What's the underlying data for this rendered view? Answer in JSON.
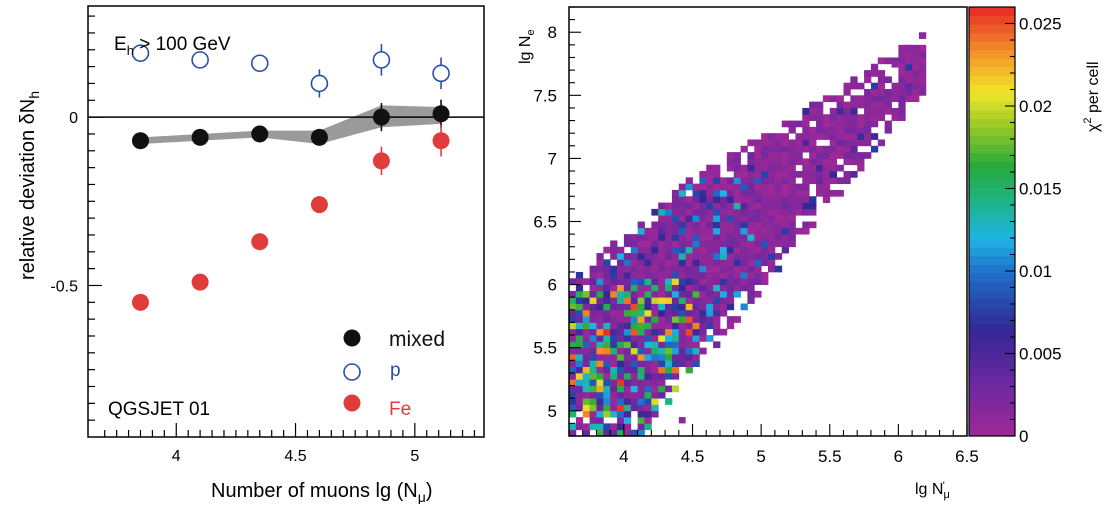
{
  "colors": {
    "mixed": "#111111",
    "proton": "#2a4fa8",
    "iron": "#e03c3c",
    "band": "#9a9a9a",
    "axis": "#000000"
  },
  "chart_data": [
    {
      "type": "scatter",
      "panel": "left",
      "xlabel": "Number of muons lg (N",
      "xlabel_sub": "μ",
      "xlabel_end": ")",
      "ylabel": "relative deviation δN",
      "ylabel_sub": "h",
      "annotation_energy": "E",
      "annotation_energy_sub": "h",
      "annotation_energy_rest": " > 100 GeV",
      "annotation_model": "QGSJET 01",
      "xlim": [
        3.63,
        5.29
      ],
      "ylim": [
        -0.95,
        0.33
      ],
      "x_ticks": [
        {
          "value": 4,
          "label": "4"
        },
        {
          "value": 4.5,
          "label": "4.5"
        },
        {
          "value": 5,
          "label": "5"
        }
      ],
      "y_ticks": [
        {
          "value": 0,
          "label": "0"
        },
        {
          "value": -0.5,
          "label": "-0.5"
        }
      ],
      "zero_line": true,
      "series": [
        {
          "name": "mixed",
          "marker": "filled-circle",
          "color": "#111111",
          "x": [
            3.85,
            4.1,
            4.35,
            4.6,
            4.86,
            5.11
          ],
          "y": [
            -0.07,
            -0.06,
            -0.05,
            -0.06,
            0.0,
            0.01
          ],
          "err": [
            0.012,
            0.012,
            0.012,
            0.012,
            0.03,
            0.03
          ]
        },
        {
          "name": "p",
          "marker": "open-circle",
          "color": "#2a4fa8",
          "x": [
            3.85,
            4.1,
            4.35,
            4.6,
            4.86,
            5.11
          ],
          "y": [
            0.19,
            0.17,
            0.16,
            0.1,
            0.17,
            0.13
          ],
          "err": [
            0.012,
            0.012,
            0.012,
            0.03,
            0.035,
            0.035
          ]
        },
        {
          "name": "Fe",
          "marker": "filled-circle",
          "color": "#e03c3c",
          "x": [
            3.85,
            4.1,
            4.35,
            4.6,
            4.86,
            5.11
          ],
          "y": [
            -0.55,
            -0.49,
            -0.37,
            -0.26,
            -0.13,
            -0.07
          ],
          "err": [
            0.012,
            0.012,
            0.012,
            0.012,
            0.03,
            0.035
          ]
        }
      ],
      "band": {
        "x": [
          3.85,
          4.1,
          4.35,
          4.6,
          4.86,
          5.11
        ],
        "upper": [
          -0.06,
          -0.05,
          -0.04,
          -0.04,
          0.035,
          0.03
        ],
        "lower": [
          -0.08,
          -0.07,
          -0.06,
          -0.08,
          -0.03,
          -0.02
        ]
      },
      "legend": {
        "placement": "bottom-right",
        "entries": [
          {
            "label": "mixed",
            "series": "mixed"
          },
          {
            "label": "p",
            "series": "p"
          },
          {
            "label": "Fe",
            "series": "Fe"
          }
        ]
      }
    },
    {
      "type": "heatmap",
      "panel": "right",
      "xlabel": "lg N",
      "xlabel_sub": "μ",
      "xlabel_sup": "'",
      "ylabel": "lg N",
      "ylabel_sub": "e",
      "colorbar_label": "χ",
      "colorbar_label_sup": "2",
      "colorbar_label_rest": " per cell",
      "xlim": [
        3.6,
        6.5
      ],
      "ylim": [
        4.8,
        8.2
      ],
      "x_ticks": [
        {
          "value": 4,
          "label": "4"
        },
        {
          "value": 4.5,
          "label": "4.5"
        },
        {
          "value": 5,
          "label": "5"
        },
        {
          "value": 5.5,
          "label": "5.5"
        },
        {
          "value": 6,
          "label": "6"
        },
        {
          "value": 6.5,
          "label": "6.5"
        }
      ],
      "y_ticks": [
        {
          "value": 5,
          "label": "5"
        },
        {
          "value": 5.5,
          "label": "5.5"
        },
        {
          "value": 6,
          "label": "6"
        },
        {
          "value": 6.5,
          "label": "6.5"
        },
        {
          "value": 7,
          "label": "7"
        },
        {
          "value": 7.5,
          "label": "7.5"
        },
        {
          "value": 8,
          "label": "8"
        }
      ],
      "cell_size": 0.05,
      "value_range": [
        0,
        0.026
      ],
      "colorbar_ticks": [
        {
          "value": 0,
          "label": "0"
        },
        {
          "value": 0.005,
          "label": "0.005"
        },
        {
          "value": 0.01,
          "label": "0.01"
        },
        {
          "value": 0.015,
          "label": "0.015"
        },
        {
          "value": 0.02,
          "label": "0.02"
        },
        {
          "value": 0.025,
          "label": "0.025"
        }
      ],
      "populated_region": {
        "description": "diagonal band of filled cells, lg Ne rising with lg N'mu",
        "lower_edge": [
          [
            3.6,
            4.8
          ],
          [
            4.1,
            4.8
          ],
          [
            6.1,
            7.45
          ]
        ],
        "upper_edge": [
          [
            3.6,
            6.0
          ],
          [
            4.4,
            6.75
          ],
          [
            6.1,
            7.9
          ]
        ],
        "dominant_value": 0.0008,
        "high_values_near": "low lg N'mu, lg Ne 4.8-6.0"
      }
    }
  ]
}
